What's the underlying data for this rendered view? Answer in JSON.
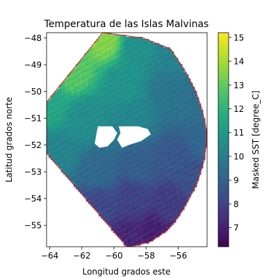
{
  "chart_data": {
    "type": "heatmap",
    "title": "Temperatura de las Islas Malvinas",
    "xlabel": "Longitud grados este",
    "ylabel": "Latitud grados norte",
    "xlim": [
      -64.2,
      -54.2
    ],
    "ylim": [
      -55.8,
      -47.8
    ],
    "x_ticks": [
      -64,
      -62,
      -60,
      -58,
      -56
    ],
    "y_ticks": [
      -48,
      -49,
      -50,
      -51,
      -52,
      -53,
      -54,
      -55
    ],
    "x_tick_labels": [
      "−64",
      "−62",
      "−60",
      "−58",
      "−56"
    ],
    "y_tick_labels": [
      "−48",
      "−49",
      "−50",
      "−51",
      "−52",
      "−53",
      "−54",
      "−55"
    ],
    "colorbar": {
      "label": "Masked SST [degree_C]",
      "range": [
        6.2,
        15.2
      ],
      "ticks": [
        7,
        8,
        9,
        10,
        11,
        12,
        13,
        14,
        15
      ],
      "tick_labels": [
        "7",
        "8",
        "9",
        "10",
        "11",
        "12",
        "13",
        "14",
        "15"
      ],
      "colormap": "viridis"
    },
    "mask_outline": {
      "color": "#d62728",
      "vertices": [
        [
          -60.7,
          -47.8
        ],
        [
          -58.2,
          -48.0
        ],
        [
          -56.5,
          -48.4
        ],
        [
          -55.6,
          -49.2
        ],
        [
          -54.9,
          -50.0
        ],
        [
          -54.5,
          -50.7
        ],
        [
          -54.25,
          -51.4
        ],
        [
          -54.25,
          -52.0
        ],
        [
          -54.4,
          -52.6
        ],
        [
          -54.8,
          -53.4
        ],
        [
          -55.4,
          -54.1
        ],
        [
          -56.0,
          -54.7
        ],
        [
          -56.7,
          -55.2
        ],
        [
          -57.7,
          -55.6
        ],
        [
          -58.9,
          -55.8
        ],
        [
          -59.2,
          -55.8
        ],
        [
          -64.2,
          -52.3
        ],
        [
          -64.2,
          -50.4
        ],
        [
          -60.7,
          -47.8
        ]
      ]
    },
    "land_mask": {
      "color": "#ffffff",
      "islands": [
        [
          [
            -61.0,
            -51.3
          ],
          [
            -60.1,
            -51.3
          ],
          [
            -59.8,
            -51.55
          ],
          [
            -60.0,
            -51.8
          ],
          [
            -60.4,
            -52.05
          ],
          [
            -60.9,
            -52.1
          ],
          [
            -61.2,
            -51.95
          ],
          [
            -61.1,
            -51.6
          ]
        ],
        [
          [
            -59.7,
            -51.3
          ],
          [
            -58.5,
            -51.3
          ],
          [
            -57.9,
            -51.4
          ],
          [
            -57.7,
            -51.6
          ],
          [
            -58.3,
            -51.85
          ],
          [
            -59.1,
            -52.0
          ],
          [
            -59.5,
            -52.1
          ],
          [
            -59.8,
            -51.8
          ],
          [
            -59.6,
            -51.55
          ]
        ]
      ]
    },
    "field_samples": [
      {
        "lon": -60.6,
        "lat": -48.0,
        "sst": 13.5
      },
      {
        "lon": -62.5,
        "lat": -49.3,
        "sst": 12.8
      },
      {
        "lon": -64.0,
        "lat": -50.5,
        "sst": 11.5
      },
      {
        "lon": -58.5,
        "lat": -48.3,
        "sst": 10.7
      },
      {
        "lon": -56.5,
        "lat": -48.6,
        "sst": 10.2
      },
      {
        "lon": -59.5,
        "lat": -49.8,
        "sst": 10.8
      },
      {
        "lon": -61.8,
        "lat": -51.0,
        "sst": 10.6
      },
      {
        "lon": -59.0,
        "lat": -51.0,
        "sst": 10.3
      },
      {
        "lon": -56.5,
        "lat": -50.0,
        "sst": 9.7
      },
      {
        "lon": -55.0,
        "lat": -50.5,
        "sst": 9.5
      },
      {
        "lon": -54.5,
        "lat": -51.8,
        "sst": 9.2
      },
      {
        "lon": -63.5,
        "lat": -52.3,
        "sst": 10.2
      },
      {
        "lon": -61.0,
        "lat": -53.0,
        "sst": 9.3
      },
      {
        "lon": -58.5,
        "lat": -52.8,
        "sst": 8.9
      },
      {
        "lon": -56.0,
        "lat": -52.5,
        "sst": 8.6
      },
      {
        "lon": -55.0,
        "lat": -53.3,
        "sst": 8.4
      },
      {
        "lon": -61.0,
        "lat": -54.2,
        "sst": 8.2
      },
      {
        "lon": -58.8,
        "lat": -54.0,
        "sst": 8.0
      },
      {
        "lon": -56.5,
        "lat": -54.2,
        "sst": 7.8
      },
      {
        "lon": -59.0,
        "lat": -55.5,
        "sst": 7.2
      },
      {
        "lon": -57.5,
        "lat": -55.3,
        "sst": 7.0
      }
    ]
  }
}
